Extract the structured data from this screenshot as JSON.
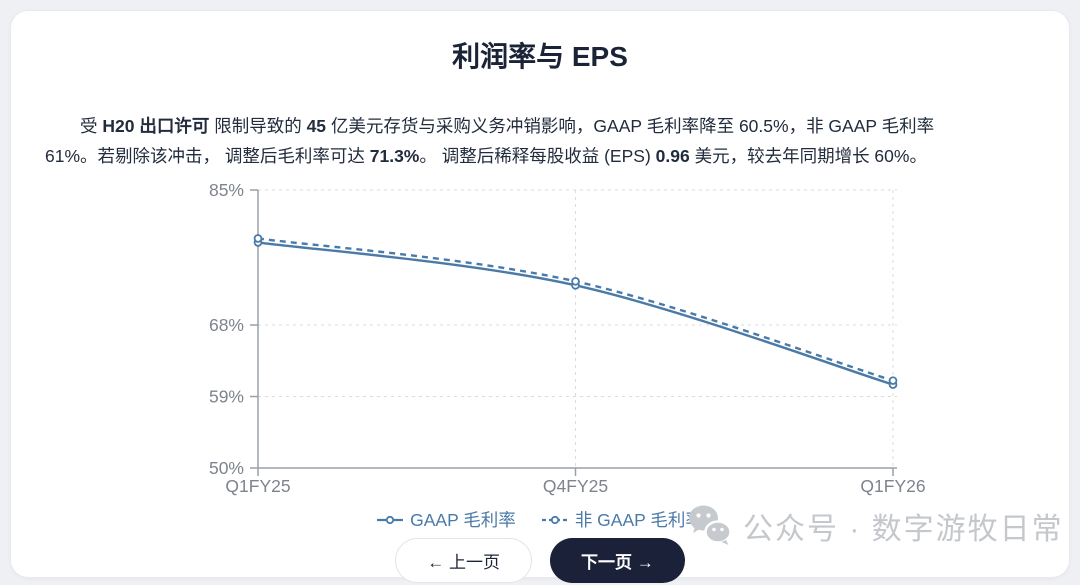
{
  "title": "利润率与 EPS",
  "summary": {
    "segments": [
      {
        "text": "受 ",
        "bold": false
      },
      {
        "text": "H20 出口许可",
        "bold": true
      },
      {
        "text": " 限制导致的 ",
        "bold": false
      },
      {
        "text": "45",
        "bold": true
      },
      {
        "text": " 亿美元存货与采购义务冲销影响，GAAP 毛利率降至 60.5%，非 GAAP 毛利率 61%。若剔除该冲击， 调整后毛利率可达 ",
        "bold": false
      },
      {
        "text": "71.3%",
        "bold": true
      },
      {
        "text": "。 调整后稀释每股收益 (EPS) ",
        "bold": false
      },
      {
        "text": "0.96",
        "bold": true
      },
      {
        "text": " 美元，较去年同期增长 60%。",
        "bold": false
      }
    ]
  },
  "chart_data": {
    "type": "line",
    "categories": [
      "Q1FY25",
      "Q4FY25",
      "Q1FY26"
    ],
    "series": [
      {
        "name": "GAAP 毛利率",
        "values": [
          78.4,
          73.0,
          60.5
        ],
        "line_style": "solid"
      },
      {
        "name": "非 GAAP 毛利率",
        "values": [
          78.9,
          73.5,
          61.0
        ],
        "line_style": "dashed"
      }
    ],
    "ylim": [
      50,
      85
    ],
    "yticks": [
      {
        "value": 50,
        "label": "50%"
      },
      {
        "value": 59,
        "label": "59%"
      },
      {
        "value": 68,
        "label": "68%"
      },
      {
        "value": 85,
        "label": "85%"
      }
    ],
    "grid": true,
    "legend_position": "bottom",
    "line_color": "#4a7aa8",
    "marker": "open-circle",
    "grid_color": "#d9dbdf",
    "axis_color": "#9aa0a8",
    "tick_text_color": "#7e838d"
  },
  "pagination": {
    "prev_label": "← 上一页",
    "next_label": "下一页 →"
  },
  "watermark": {
    "icon": "wechat-icon",
    "text": "公众号 · 数字游牧日常"
  },
  "colors": {
    "page_bg": "#eff0f3",
    "card_bg": "#ffffff",
    "title_text": "#1b2437",
    "body_text": "#222c3d",
    "line_blue": "#4a7aa8",
    "button_dark_bg": "#1a2138",
    "button_dark_text": "#ffffff",
    "watermark_gray": "#c4c7cc"
  }
}
